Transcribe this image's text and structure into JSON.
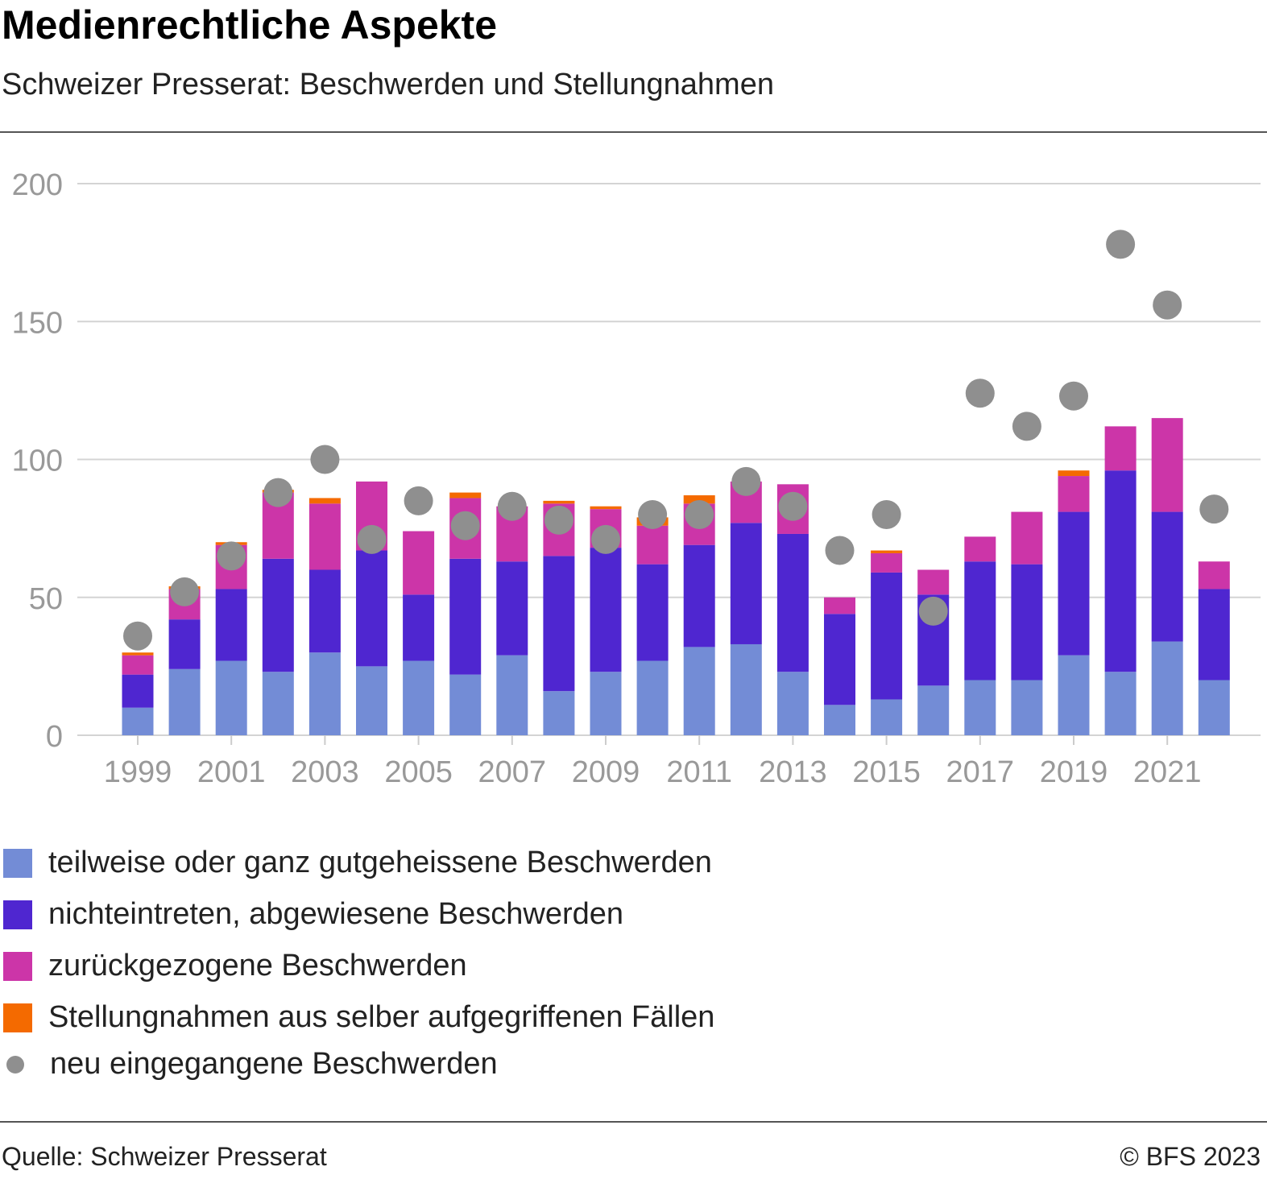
{
  "header": {
    "title": "Medienrechtliche Aspekte",
    "subtitle": "Schweizer Presserat: Beschwerden und Stellungnahmen"
  },
  "footer": {
    "source": "Quelle: Schweizer Presserat",
    "copyright": "© BFS 2023"
  },
  "chart_data": {
    "type": "bar",
    "stacked": true,
    "title": "Medienrechtliche Aspekte",
    "subtitle": "Schweizer Presserat: Beschwerden und Stellungnahmen",
    "xlabel": "",
    "ylabel": "",
    "ylim": [
      0,
      200
    ],
    "yticks": [
      0,
      50,
      100,
      150,
      200
    ],
    "xtick_labels": [
      "1999",
      "2001",
      "2003",
      "2005",
      "2007",
      "2009",
      "2011",
      "2013",
      "2015",
      "2017",
      "2019",
      "2021"
    ],
    "categories": [
      "1999",
      "2000",
      "2001",
      "2002",
      "2003",
      "2004",
      "2005",
      "2006",
      "2007",
      "2008",
      "2009",
      "2010",
      "2011",
      "2012",
      "2013",
      "2014",
      "2015",
      "2016",
      "2017",
      "2018",
      "2019",
      "2020",
      "2021",
      "2022"
    ],
    "series": [
      {
        "name": "teilweise oder ganz gutgeheissene Beschwerden",
        "color": "#738cd6",
        "values": [
          10,
          24,
          27,
          23,
          30,
          25,
          27,
          22,
          29,
          16,
          23,
          27,
          32,
          33,
          23,
          11,
          13,
          18,
          20,
          20,
          29,
          23,
          34,
          20
        ]
      },
      {
        "name": "nichteintreten, abgewiesene Beschwerden",
        "color": "#4f26d0",
        "values": [
          12,
          18,
          26,
          41,
          30,
          42,
          24,
          42,
          34,
          49,
          45,
          35,
          37,
          44,
          50,
          33,
          46,
          33,
          43,
          42,
          52,
          73,
          47,
          33
        ]
      },
      {
        "name": "zurückgezogene Beschwerden",
        "color": "#cc35a8",
        "values": [
          7,
          11,
          16,
          24,
          24,
          25,
          23,
          22,
          20,
          19,
          14,
          14,
          15,
          15,
          18,
          6,
          7,
          9,
          9,
          19,
          13,
          16,
          34,
          10
        ]
      },
      {
        "name": "Stellungnahmen aus selber aufgegriffenen Fällen",
        "color": "#f46a00",
        "values": [
          1,
          1,
          1,
          1,
          2,
          0,
          0,
          2,
          0,
          1,
          1,
          3,
          3,
          0,
          0,
          0,
          1,
          0,
          0,
          0,
          2,
          0,
          0,
          0
        ]
      }
    ],
    "points": {
      "name": "neu eingegangene Beschwerden",
      "color": "#8f8f8f",
      "values": [
        36,
        52,
        65,
        88,
        100,
        71,
        85,
        76,
        83,
        78,
        71,
        80,
        80,
        92,
        83,
        67,
        80,
        45,
        124,
        112,
        123,
        178,
        156,
        82
      ]
    },
    "legend_position": "bottom",
    "grid": true
  }
}
